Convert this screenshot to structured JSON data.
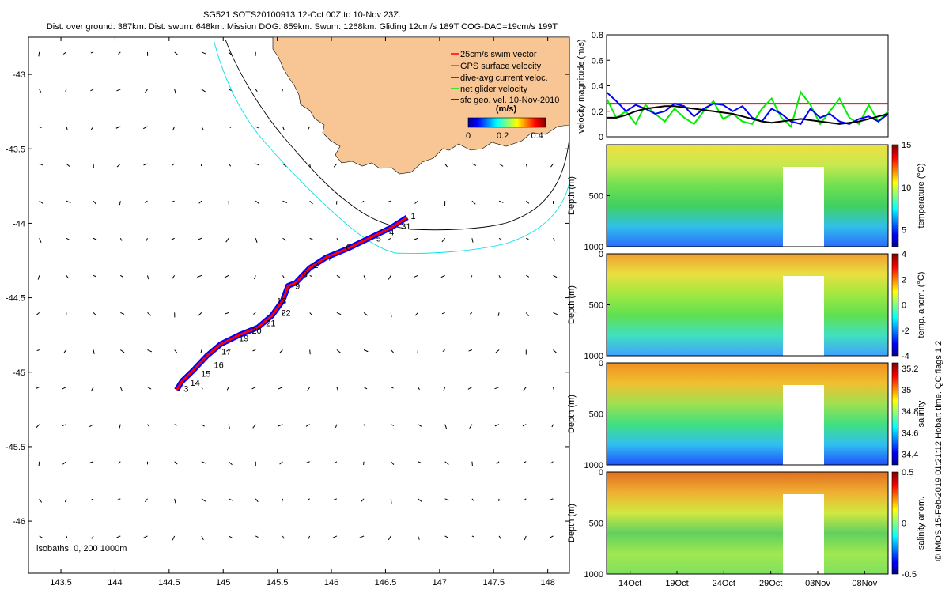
{
  "title": {
    "line1": "SG521 SOTS20100913 12-Oct 00Z to 10-Nov 23Z.",
    "line2": "Dist. over ground: 387km. Dist. swum: 648km. Mission DOG: 859km. Swum: 1268km. Gliding 12cm/s 189T COG-DAC=19cm/s 199T"
  },
  "footer_vertical": "© IMOS 15-Feb-2019 01:21:12 Hobart time. QC flags 1  2",
  "colors": {
    "land": "#f8c594",
    "isobath_200": "#000000",
    "isobath_1000": "#00e5ee",
    "track_swim": "#ff0000",
    "track_dac": "#0000ff",
    "gps": "#ff00ff",
    "net": "#00ee00",
    "geo": "#000000"
  },
  "chart_data": [
    {
      "type": "scatter",
      "name": "map",
      "xlim": [
        143.2,
        148.2
      ],
      "ylim": [
        -46.35,
        -42.75
      ],
      "x_ticks": [
        "143.5",
        "144",
        "144.5",
        "145",
        "145.5",
        "146",
        "146.5",
        "147",
        "147.5",
        "148"
      ],
      "x_tick_values": [
        143.5,
        144,
        144.5,
        145,
        145.5,
        146,
        146.5,
        147,
        147.5,
        148
      ],
      "y_ticks": [
        "-43",
        "-43.5",
        "-44",
        "-44.5",
        "-45",
        "-45.5",
        "-46"
      ],
      "y_tick_values": [
        -43,
        -43.5,
        -44,
        -44.5,
        -45,
        -45.5,
        -46
      ],
      "legend": [
        "25cm/s swim vector",
        "GPS surface velocity",
        "dive-avg current veloc.",
        "net glider velocity",
        "sfc geo. vel. 10-Nov-2010"
      ],
      "colorbar": {
        "label": "(m/s)",
        "ticks": [
          "0",
          "0.2",
          "0.4"
        ],
        "tick_values": [
          0,
          0.2,
          0.4
        ],
        "range": [
          0,
          0.45
        ]
      },
      "isobath_note": "isobaths: 0,  200  1000m",
      "track": [
        [
          144.57,
          -45.12
        ],
        [
          144.62,
          -45.06
        ],
        [
          144.72,
          -44.99
        ],
        [
          144.85,
          -44.89
        ],
        [
          144.98,
          -44.81
        ],
        [
          145.15,
          -44.75
        ],
        [
          145.32,
          -44.7
        ],
        [
          145.45,
          -44.62
        ],
        [
          145.55,
          -44.52
        ],
        [
          145.6,
          -44.42
        ],
        [
          145.67,
          -44.4
        ],
        [
          145.8,
          -44.3
        ],
        [
          145.95,
          -44.23
        ],
        [
          146.15,
          -44.17
        ],
        [
          146.35,
          -44.1
        ],
        [
          146.55,
          -44.03
        ],
        [
          146.7,
          -43.96
        ]
      ],
      "track_labels": [
        {
          "text": "1",
          "lon": 146.72,
          "lat": -43.95
        },
        {
          "text": "31",
          "lon": 146.63,
          "lat": -44.02
        },
        {
          "text": "4",
          "lon": 146.52,
          "lat": -44.06
        },
        {
          "text": "5",
          "lon": 146.4,
          "lat": -44.1
        },
        {
          "text": "6",
          "lon": 146.12,
          "lat": -44.16
        },
        {
          "text": "7",
          "lon": 145.95,
          "lat": -44.23
        },
        {
          "text": "2",
          "lon": 145.82,
          "lat": -44.28
        },
        {
          "text": "8",
          "lon": 145.72,
          "lat": -44.34
        },
        {
          "text": "9",
          "lon": 145.65,
          "lat": -44.42
        },
        {
          "text": "13",
          "lon": 145.48,
          "lat": -44.52
        },
        {
          "text": "22",
          "lon": 145.52,
          "lat": -44.6
        },
        {
          "text": "21",
          "lon": 145.38,
          "lat": -44.67
        },
        {
          "text": "20",
          "lon": 145.25,
          "lat": -44.72
        },
        {
          "text": "19",
          "lon": 145.13,
          "lat": -44.77
        },
        {
          "text": "17",
          "lon": 144.97,
          "lat": -44.86
        },
        {
          "text": "16",
          "lon": 144.9,
          "lat": -44.95
        },
        {
          "text": "15",
          "lon": 144.78,
          "lat": -45.01
        },
        {
          "text": "14",
          "lon": 144.68,
          "lat": -45.07
        },
        {
          "text": "3",
          "lon": 144.62,
          "lat": -45.11
        }
      ]
    },
    {
      "type": "line",
      "name": "velocity",
      "ylabel": "velocity magnitude (m/s)",
      "ylim": [
        0,
        0.8
      ],
      "y_ticks": [
        "0",
        "0.2",
        "0.4",
        "0.6",
        "0.8"
      ],
      "y_tick_values": [
        0,
        0.2,
        0.4,
        0.6,
        0.8
      ],
      "xlim": [
        11.5,
        41.5
      ],
      "series": [
        {
          "name": "swim vector",
          "color": "#ff0000",
          "values": [
            0.26,
            0.26,
            0.26,
            0.26,
            0.26,
            0.26,
            0.26,
            0.26,
            0.26,
            0.26,
            0.26,
            0.26,
            0.26,
            0.26,
            0.26,
            0.26,
            0.26,
            0.26,
            0.26,
            0.26,
            0.26,
            0.26,
            0.26,
            0.26,
            0.26,
            0.26,
            0.26,
            0.26,
            0.26,
            0.26
          ]
        },
        {
          "name": "net glider",
          "color": "#00ee00",
          "values": [
            0.3,
            0.15,
            0.2,
            0.1,
            0.25,
            0.18,
            0.12,
            0.22,
            0.15,
            0.1,
            0.2,
            0.28,
            0.14,
            0.18,
            0.12,
            0.1,
            0.22,
            0.3,
            0.15,
            0.08,
            0.35,
            0.25,
            0.1,
            0.2,
            0.3,
            0.15,
            0.1,
            0.25,
            0.12,
            0.2
          ]
        },
        {
          "name": "dive-avg current",
          "color": "#0000ff",
          "values": [
            0.35,
            0.28,
            0.2,
            0.25,
            0.22,
            0.18,
            0.2,
            0.26,
            0.24,
            0.16,
            0.22,
            0.26,
            0.25,
            0.2,
            0.24,
            0.15,
            0.12,
            0.22,
            0.18,
            0.12,
            0.1,
            0.22,
            0.15,
            0.18,
            0.12,
            0.1,
            0.14,
            0.16,
            0.12,
            0.18
          ]
        },
        {
          "name": "geo vel",
          "color": "#000000",
          "values": [
            0.15,
            0.15,
            0.17,
            0.2,
            0.22,
            0.23,
            0.24,
            0.24,
            0.23,
            0.22,
            0.21,
            0.2,
            0.19,
            0.18,
            0.16,
            0.14,
            0.12,
            0.11,
            0.12,
            0.13,
            0.14,
            0.13,
            0.12,
            0.11,
            0.1,
            0.11,
            0.12,
            0.14,
            0.16,
            0.18
          ]
        }
      ]
    },
    {
      "type": "heatmap",
      "name": "temperature",
      "ylabel": "Depth (m)",
      "cbar_label": "temperature (°C)",
      "ylim": [
        1000,
        0
      ],
      "y_ticks": [
        "500",
        "1000"
      ],
      "y_tick_values": [
        500,
        1000
      ],
      "cbar_ticks": [
        "5",
        "10",
        "15"
      ],
      "cbar_tick_values": [
        5,
        10,
        15
      ],
      "cbar_range": [
        3,
        15
      ]
    },
    {
      "type": "heatmap",
      "name": "temp-anom",
      "ylabel": "Depth (m)",
      "cbar_label": "temp. anom. (°C)",
      "ylim": [
        1000,
        0
      ],
      "y_ticks": [
        "0",
        "500",
        "1000"
      ],
      "y_tick_values": [
        0,
        500,
        1000
      ],
      "cbar_ticks": [
        "4",
        "2",
        "0",
        "-2",
        "-4"
      ],
      "cbar_tick_values": [
        4,
        2,
        0,
        -2,
        -4
      ],
      "cbar_range": [
        -4,
        4
      ]
    },
    {
      "type": "heatmap",
      "name": "salinity",
      "ylabel": "Depth (m)",
      "cbar_label": "salinity",
      "ylim": [
        1000,
        0
      ],
      "y_ticks": [
        "0",
        "500",
        "1000"
      ],
      "y_tick_values": [
        0,
        500,
        1000
      ],
      "cbar_ticks": [
        "35.2",
        "35",
        "34.8",
        "34.6",
        "34.4"
      ],
      "cbar_tick_values": [
        35.2,
        35,
        34.8,
        34.6,
        34.4
      ],
      "cbar_range": [
        34.3,
        35.25
      ]
    },
    {
      "type": "heatmap",
      "name": "salinity-anom",
      "ylabel": "Depth (m)",
      "cbar_label": "salinity anom.",
      "ylim": [
        1000,
        0
      ],
      "y_ticks": [
        "0",
        "500",
        "1000"
      ],
      "y_tick_values": [
        0,
        500,
        1000
      ],
      "cbar_ticks": [
        "0.5",
        "0",
        "-0.5"
      ],
      "cbar_tick_values": [
        0.5,
        0,
        -0.5
      ],
      "cbar_range": [
        -0.5,
        0.5
      ],
      "time_ticks": [
        "14Oct",
        "19Oct",
        "24Oct",
        "29Oct",
        "03Nov",
        "08Nov"
      ],
      "time_tick_values": [
        14,
        19,
        24,
        29,
        34,
        39
      ]
    }
  ]
}
